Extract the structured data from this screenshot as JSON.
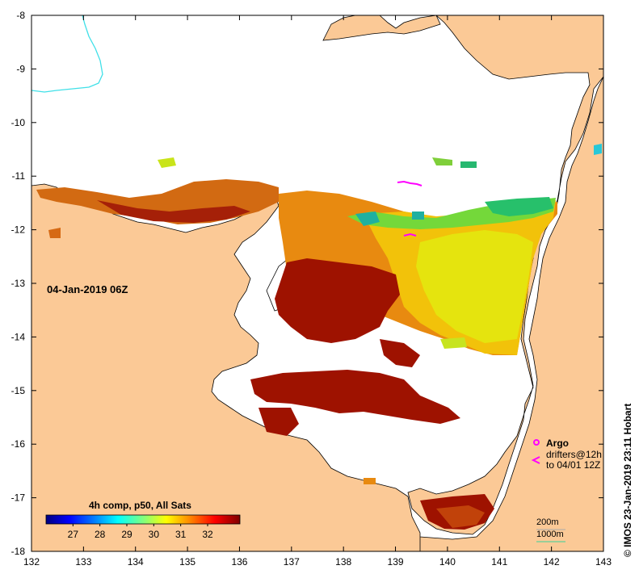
{
  "map": {
    "date_label": "04-Jan-2019 06Z",
    "credit": "© IMOS 23-Jan-2019 23:11 Hobart",
    "lon_range": [
      132,
      143
    ],
    "lat_range": [
      -18,
      -8
    ],
    "lon_ticks": [
      "132",
      "133",
      "134",
      "135",
      "136",
      "137",
      "138",
      "139",
      "140",
      "141",
      "142",
      "143"
    ],
    "lat_ticks": [
      "-8",
      "-9",
      "-10",
      "-11",
      "-12",
      "-13",
      "-14",
      "-15",
      "-16",
      "-17",
      "-18"
    ],
    "colors": {
      "land": "#fbc996",
      "sea": "#ffffff",
      "river": "#40e0e8",
      "argo": "#ff00ff",
      "contour_200m": "#aaaaaa",
      "contour_1000m": "#39d39a"
    }
  },
  "colorbar": {
    "title": "4h comp, p50, All Sats",
    "tick_labels": [
      "27",
      "28",
      "29",
      "30",
      "31",
      "32"
    ],
    "min": 26,
    "max": 33.2,
    "colors": [
      "#00007f",
      "#0000ff",
      "#007fff",
      "#00ffff",
      "#7fff7f",
      "#ffff00",
      "#ff7f00",
      "#ff0000",
      "#7f0000"
    ]
  },
  "legend": {
    "argo_label": "Argo",
    "drifters_line1": "drifters@12h",
    "drifters_line2": "to 04/01 12Z",
    "contour_200m_label": "200m",
    "contour_1000m_label": "1000m"
  }
}
